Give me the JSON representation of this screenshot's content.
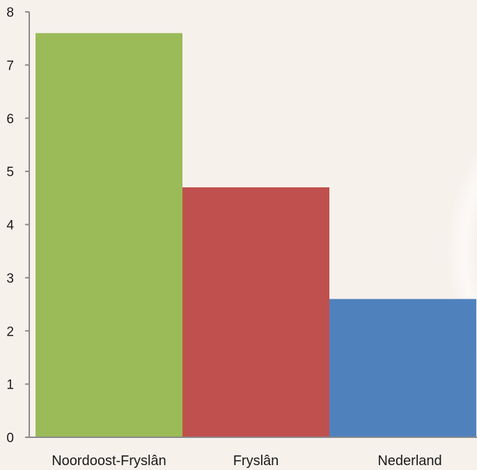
{
  "chart_data": {
    "type": "bar",
    "categories": [
      "Noordoost-Fryslân",
      "Fryslân",
      "Nederland"
    ],
    "values": [
      7.6,
      4.7,
      2.6
    ],
    "bar_colors": [
      "#9bbb59",
      "#c0504d",
      "#4f81bd"
    ],
    "ylim": [
      0,
      8
    ],
    "yticks": [
      "0",
      "1",
      "2",
      "3",
      "4",
      "5",
      "6",
      "7",
      "8"
    ],
    "title": "",
    "xlabel": "",
    "ylabel": "",
    "grid": false
  }
}
